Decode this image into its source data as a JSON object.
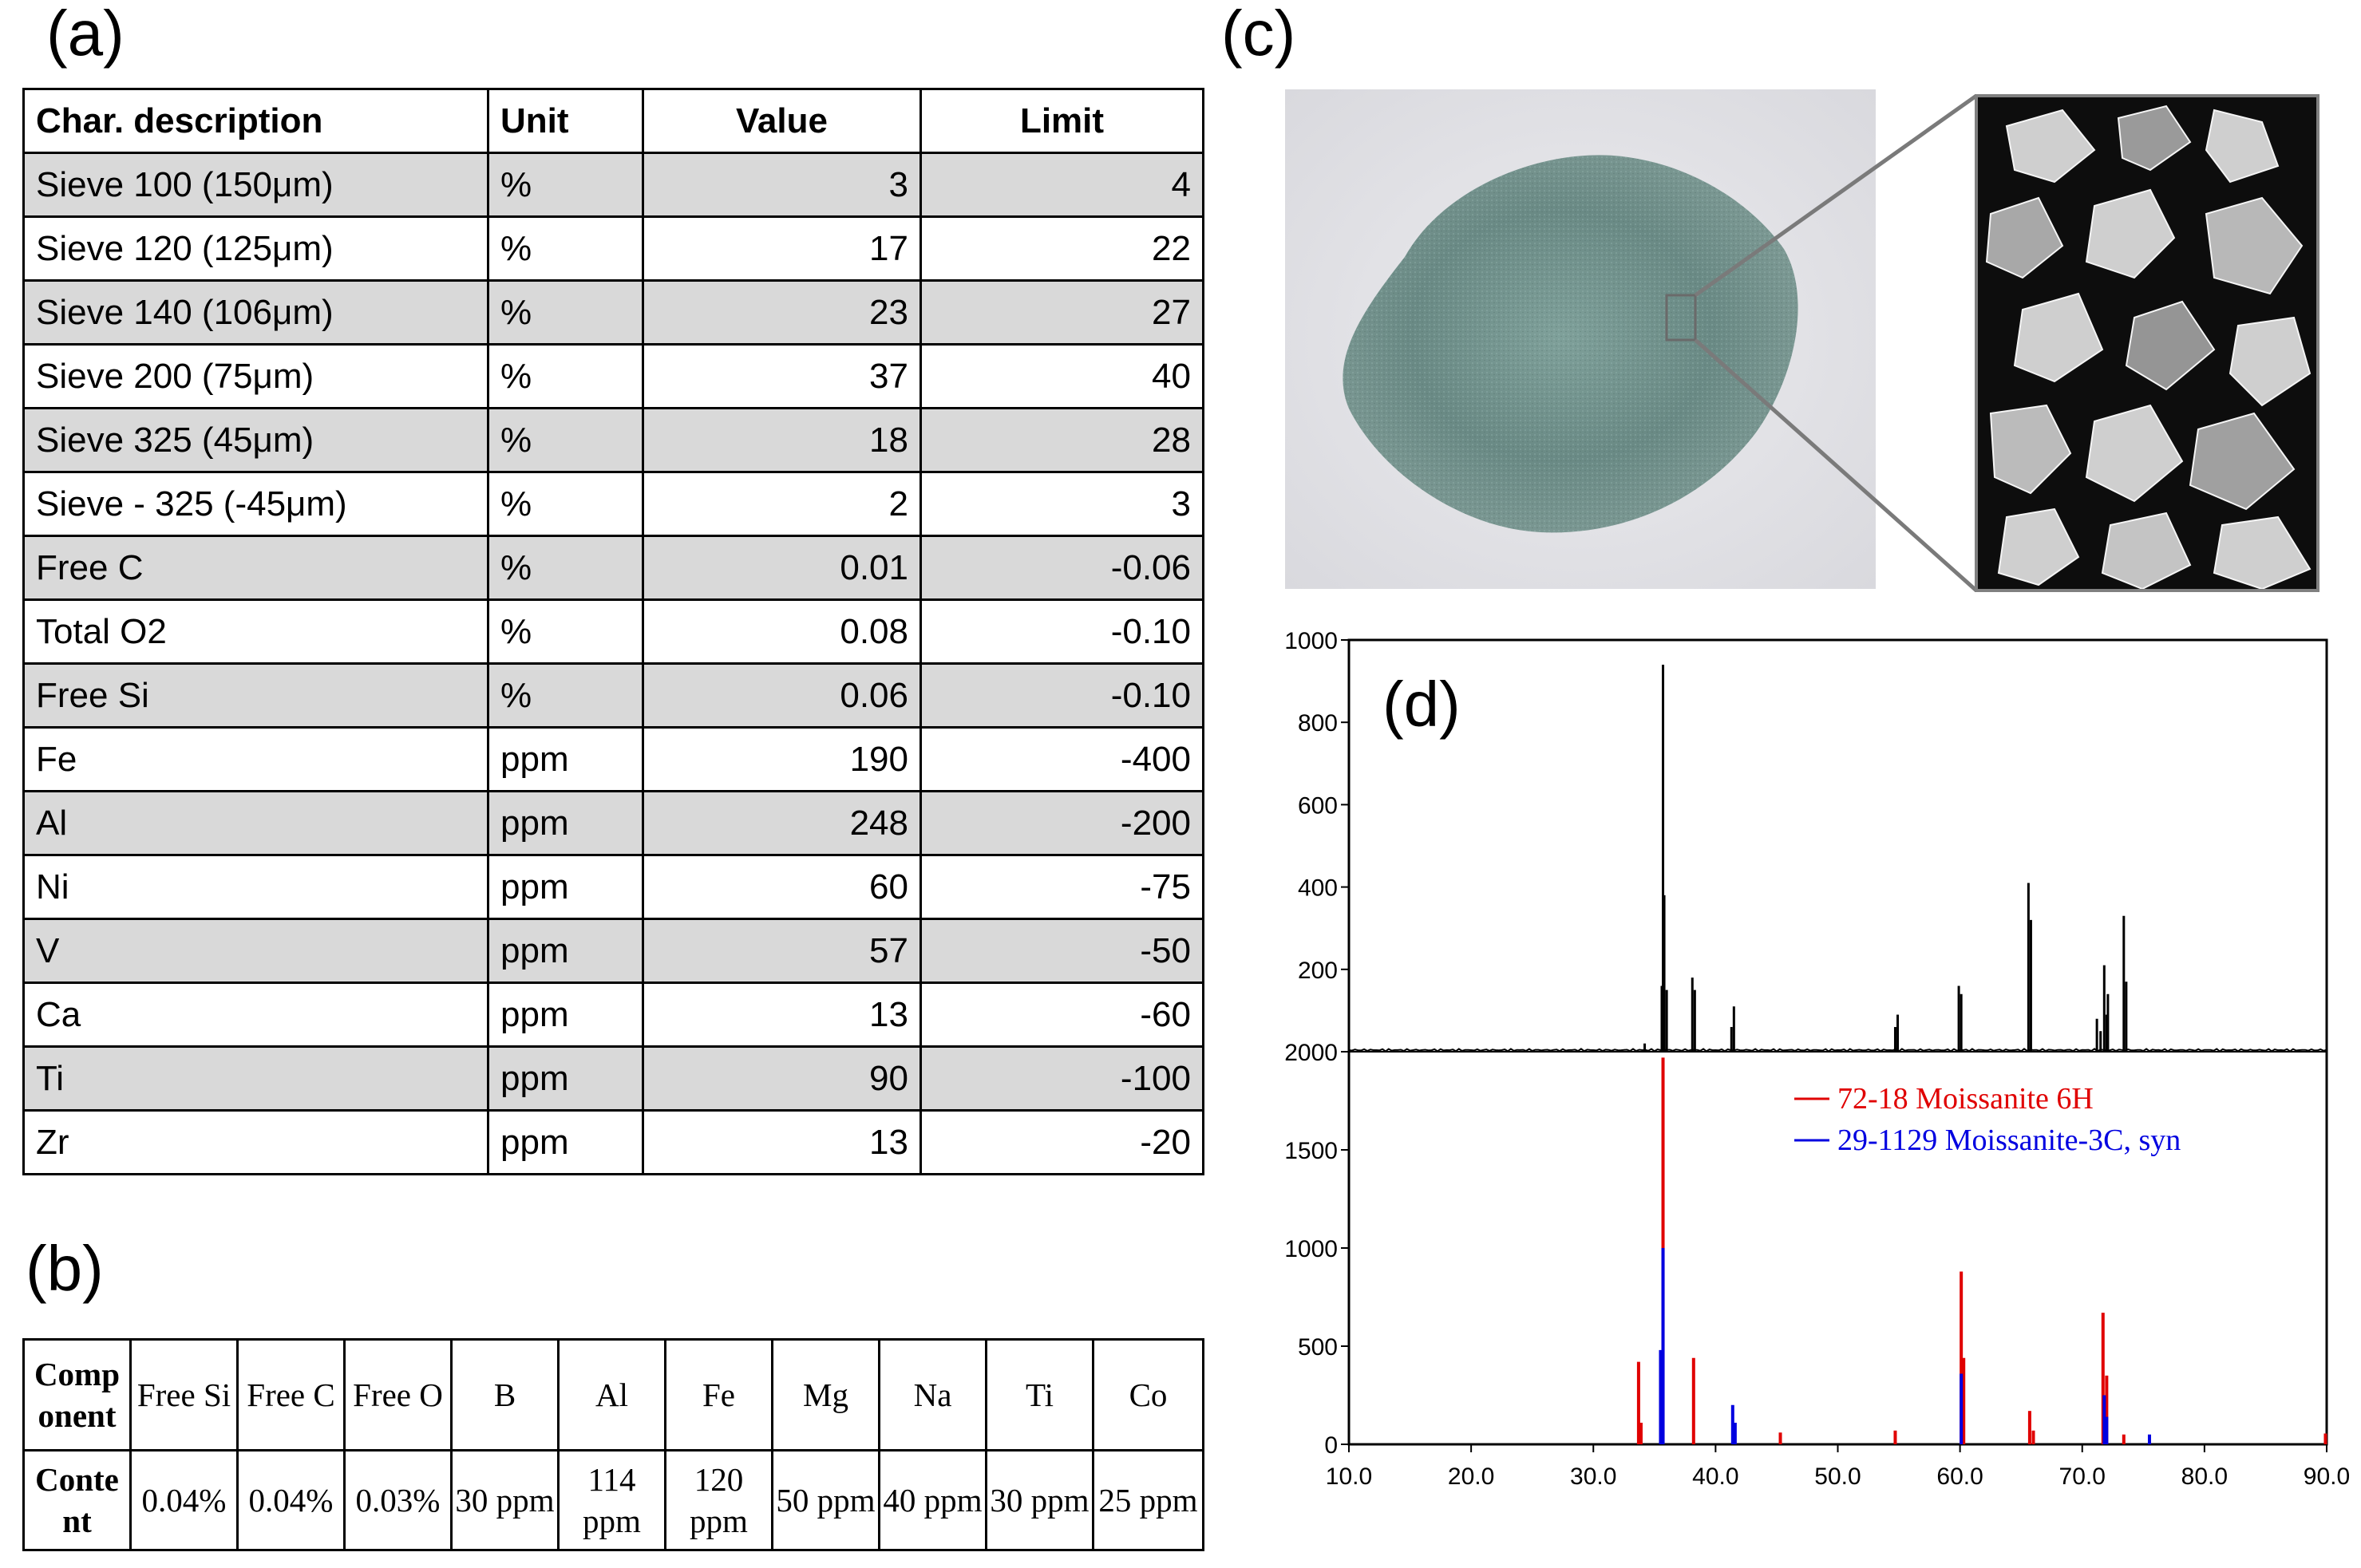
{
  "panels": {
    "a": "(a)",
    "b": "(b)",
    "c": "(c)",
    "d": "(d)"
  },
  "table_a": {
    "headers": [
      "Char. description",
      "Unit",
      "Value",
      "Limit"
    ],
    "rows": [
      [
        "Sieve 100 (150μm)",
        "%",
        "3",
        "4"
      ],
      [
        "Sieve 120 (125μm)",
        "%",
        "17",
        "22"
      ],
      [
        "Sieve 140 (106μm)",
        "%",
        "23",
        "27"
      ],
      [
        "Sieve 200 (75μm)",
        "%",
        "37",
        "40"
      ],
      [
        "Sieve 325 (45μm)",
        "%",
        "18",
        "28"
      ],
      [
        "Sieve - 325 (-45μm)",
        "%",
        "2",
        "3"
      ],
      [
        "Free C",
        "%",
        "0.01",
        "-0.06"
      ],
      [
        "Total O2",
        "%",
        "0.08",
        "-0.10"
      ],
      [
        "Free Si",
        "%",
        "0.06",
        "-0.10"
      ],
      [
        "Fe",
        "ppm",
        "190",
        "-400"
      ],
      [
        "Al",
        "ppm",
        "248",
        "-200"
      ],
      [
        "Ni",
        "ppm",
        "60",
        "-75"
      ],
      [
        "V",
        "ppm",
        "57",
        "-50"
      ],
      [
        "Ca",
        "ppm",
        "13",
        "-60"
      ],
      [
        "Ti",
        "ppm",
        "90",
        "-100"
      ],
      [
        "Zr",
        "ppm",
        "13",
        "-20"
      ]
    ]
  },
  "table_b": {
    "row_header_1": "Comp onent",
    "row_header_2": "Conte nt",
    "components": [
      "Free Si",
      "Free C",
      "Free O",
      "B",
      "Al",
      "Fe",
      "Mg",
      "Na",
      "Ti",
      "Co"
    ],
    "contents": [
      "0.04%",
      "0.04%",
      "0.03%",
      "30 ppm",
      "114 ppm",
      "120 ppm",
      "50 ppm",
      "40 ppm",
      "30 ppm",
      "25 ppm"
    ]
  },
  "colors": {
    "shade": "#d9d9d9",
    "red": "#e00000",
    "blue": "#0000e0",
    "powder": "#6f8f8a",
    "background": "#e4e4e8"
  },
  "chart_data": {
    "type": "bar",
    "x_ticks": [
      "10.0",
      "20.0",
      "30.0",
      "40.0",
      "50.0",
      "60.0",
      "70.0",
      "80.0",
      "90.0"
    ],
    "xlim": [
      10,
      90
    ],
    "top": {
      "yticks": [
        "1000",
        "800",
        "600",
        "400",
        "200"
      ],
      "ylim": [
        0,
        1000
      ],
      "series": [
        {
          "color": "#000000",
          "x": [
            34.2,
            35.6,
            35.7,
            35.8,
            36.0,
            38.1,
            38.3,
            41.3,
            41.5,
            54.7,
            54.9,
            59.9,
            60.1,
            65.6,
            65.8,
            71.2,
            71.5,
            71.8,
            72.0,
            72.1,
            73.4,
            73.6
          ],
          "values": [
            20,
            160,
            940,
            380,
            150,
            180,
            150,
            60,
            110,
            60,
            90,
            160,
            140,
            410,
            320,
            80,
            50,
            210,
            90,
            140,
            330,
            170
          ]
        }
      ]
    },
    "bottom": {
      "yticks": [
        "2000",
        "1500",
        "1000",
        "500",
        "0"
      ],
      "ylim": [
        0,
        2000
      ],
      "legend": [
        "72-18 Moissanite 6H",
        "29-1129 Moissanite-3C, syn"
      ],
      "series": [
        {
          "name": "72-18 Moissanite 6H",
          "color": "#e00000",
          "x": [
            33.7,
            33.9,
            35.7,
            38.2,
            45.3,
            54.7,
            60.1,
            60.3,
            65.7,
            66.0,
            71.7,
            72.0,
            73.4,
            89.9
          ],
          "values": [
            420,
            110,
            1970,
            440,
            60,
            70,
            880,
            440,
            170,
            70,
            670,
            350,
            50,
            55
          ]
        },
        {
          "name": "29-1129 Moissanite-3C, syn",
          "color": "#0000e0",
          "x": [
            35.5,
            35.7,
            41.4,
            41.6,
            60.1,
            71.8,
            72.0,
            75.5
          ],
          "values": [
            480,
            1000,
            200,
            110,
            360,
            250,
            140,
            50
          ]
        }
      ]
    }
  }
}
